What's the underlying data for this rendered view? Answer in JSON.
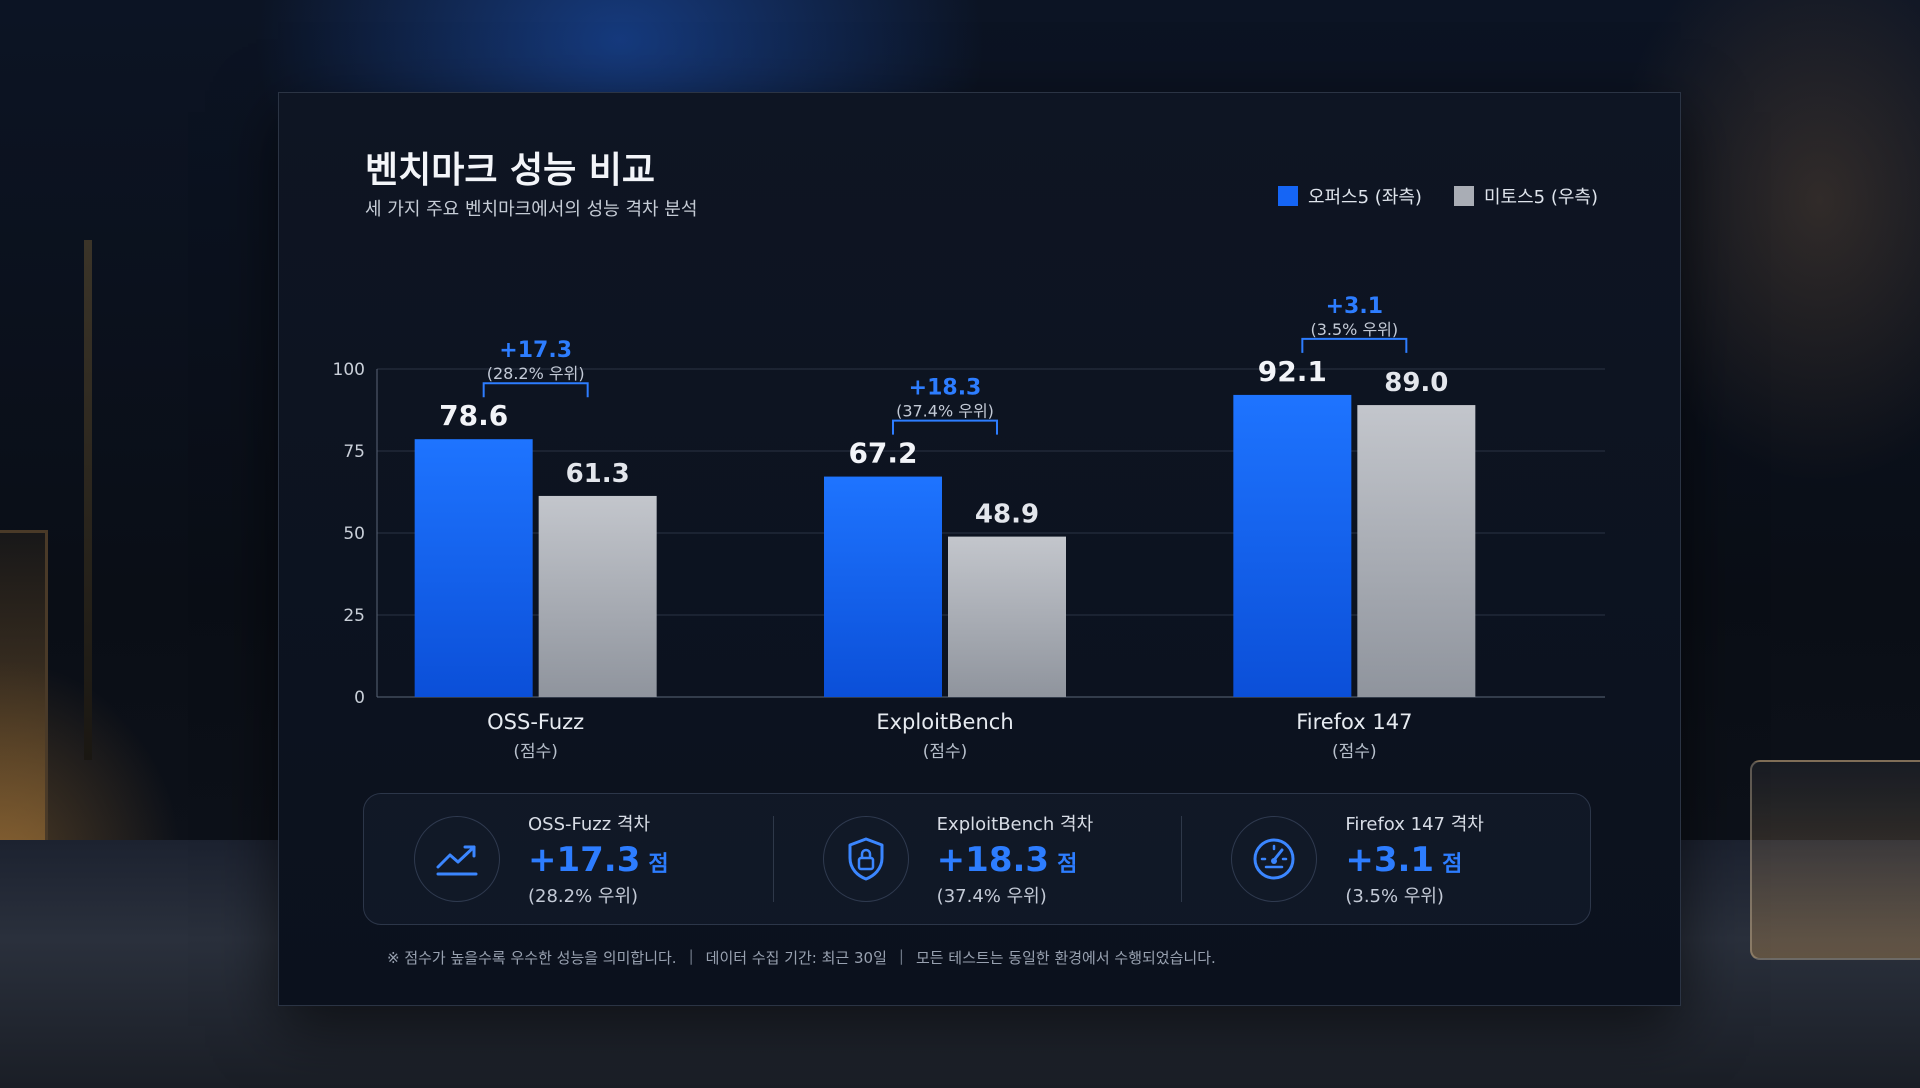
{
  "title": "벤치마크 성능 비교",
  "subtitle": "세 가지 주요 벤치마크에서의 성능 격차 분석",
  "legend": {
    "series_a": "오퍼스5 (좌측)",
    "series_b": "미토스5 (우측)"
  },
  "colors": {
    "series_a": "#1565f5",
    "series_b": "#a9adb5",
    "accent": "#2d7dff"
  },
  "chart_data": {
    "type": "bar",
    "categories": [
      "OSS-Fuzz",
      "ExploitBench",
      "Firefox 147"
    ],
    "category_sublabels": [
      "(점수)",
      "(점수)",
      "(점수)"
    ],
    "series": [
      {
        "name": "오퍼스5 (좌측)",
        "values": [
          78.6,
          67.2,
          92.1
        ]
      },
      {
        "name": "미토스5 (우측)",
        "values": [
          61.3,
          48.9,
          89.0
        ]
      }
    ],
    "value_labels_a": [
      "78.6",
      "67.2",
      "92.1"
    ],
    "value_labels_b": [
      "61.3",
      "48.9",
      "89.0"
    ],
    "gap_labels": [
      "+17.3",
      "+18.3",
      "+3.1"
    ],
    "gap_pct_labels": [
      "(28.2% 우위)",
      "(37.4% 우위)",
      "(3.5% 우위)"
    ],
    "yticks": [
      "0",
      "25",
      "50",
      "75",
      "100"
    ],
    "ylim": [
      0,
      100
    ],
    "grid": true,
    "legend_position": "top-right"
  },
  "summary": [
    {
      "icon": "trend-up-icon",
      "label": "OSS-Fuzz 격차",
      "value": "+17.3",
      "unit": "점",
      "pct": "(28.2% 우위)"
    },
    {
      "icon": "shield-lock-icon",
      "label": "ExploitBench 격차",
      "value": "+18.3",
      "unit": "점",
      "pct": "(37.4% 우위)"
    },
    {
      "icon": "speedometer-icon",
      "label": "Firefox 147 격차",
      "value": "+3.1",
      "unit": "점",
      "pct": "(3.5% 우위)"
    }
  ],
  "footnote": {
    "note1": "※ 점수가 높을수록 우수한 성능을 의미합니다.",
    "note2": "데이터 수집 기간: 최근 30일",
    "note3": "모든 테스트는 동일한 환경에서 수행되었습니다.",
    "separator": "|"
  }
}
